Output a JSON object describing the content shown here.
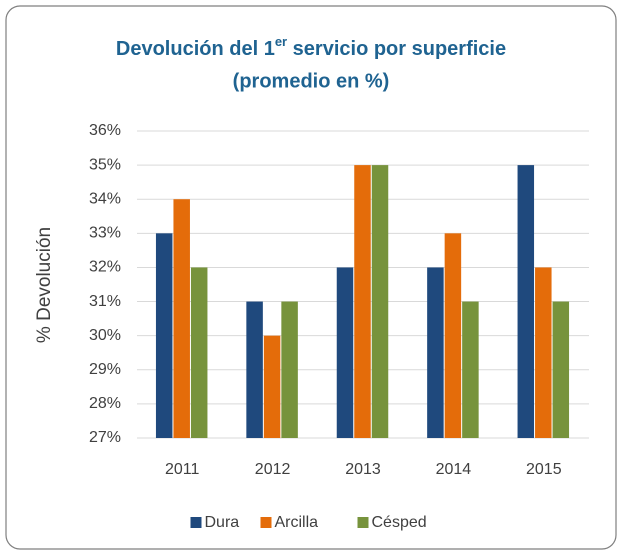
{
  "chart_data": {
    "type": "bar",
    "title_parts": [
      "Devolución del 1",
      "er",
      " servicio por superficie"
    ],
    "subtitle": "(promedio en %)",
    "y_label": "% Devolución",
    "categories": [
      "2011",
      "2012",
      "2013",
      "2014",
      "2015"
    ],
    "series": [
      {
        "name": "Dura",
        "color": "#1f497d",
        "values": [
          33,
          31,
          32,
          32,
          35
        ]
      },
      {
        "name": "Arcilla",
        "color": "#e46c0a",
        "values": [
          34,
          30,
          35,
          33,
          32
        ]
      },
      {
        "name": "Césped",
        "color": "#77933c",
        "values": [
          32,
          31,
          35,
          31,
          31
        ]
      }
    ],
    "ylim": [
      27,
      36
    ],
    "yticks": [
      {
        "value": 27,
        "label": "27%"
      },
      {
        "value": 28,
        "label": "28%"
      },
      {
        "value": 29,
        "label": "29%"
      },
      {
        "value": 30,
        "label": "30%"
      },
      {
        "value": 31,
        "label": "31%"
      },
      {
        "value": 32,
        "label": "32%"
      },
      {
        "value": 33,
        "label": "33%"
      },
      {
        "value": 34,
        "label": "34%"
      },
      {
        "value": 35,
        "label": "35%"
      },
      {
        "value": 36,
        "label": "36%"
      }
    ],
    "grid": true,
    "legend": "bottom"
  }
}
